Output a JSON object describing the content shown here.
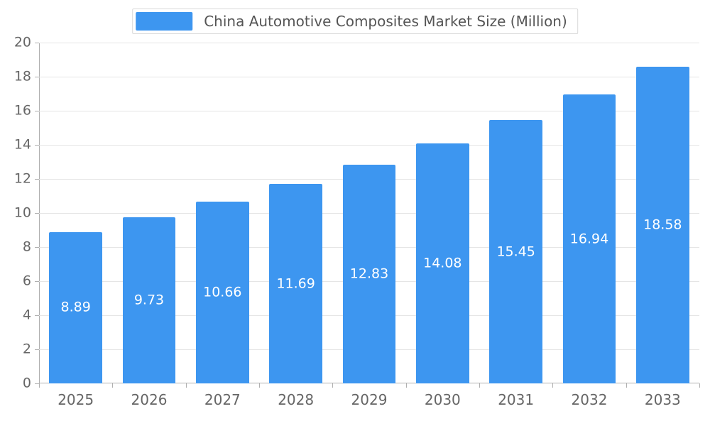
{
  "chart_data": {
    "type": "bar",
    "title": "China Automotive Composites Market Size (Million)",
    "categories": [
      "2025",
      "2026",
      "2027",
      "2028",
      "2029",
      "2030",
      "2031",
      "2032",
      "2033"
    ],
    "values": [
      8.89,
      9.73,
      10.66,
      11.69,
      12.83,
      14.08,
      15.45,
      16.94,
      18.58
    ],
    "value_labels": [
      "8.89",
      "9.73",
      "10.66",
      "11.69",
      "12.83",
      "14.08",
      "15.45",
      "16.94",
      "18.58"
    ],
    "xlabel": "",
    "ylabel": "",
    "ylim": [
      0,
      20
    ],
    "yticks": [
      0,
      2,
      4,
      6,
      8,
      10,
      12,
      14,
      16,
      18,
      20
    ],
    "grid": true,
    "legend_position": "top",
    "colors": {
      "bar": "#3D96F0",
      "bar_label_text": "#FFFFFF",
      "axis_line": "#B0B0B0",
      "grid_line": "#E5E5E5",
      "tick_text": "#666666",
      "legend_text": "#555555",
      "legend_border": "#D9D9D9",
      "background": "#FFFFFF"
    }
  }
}
